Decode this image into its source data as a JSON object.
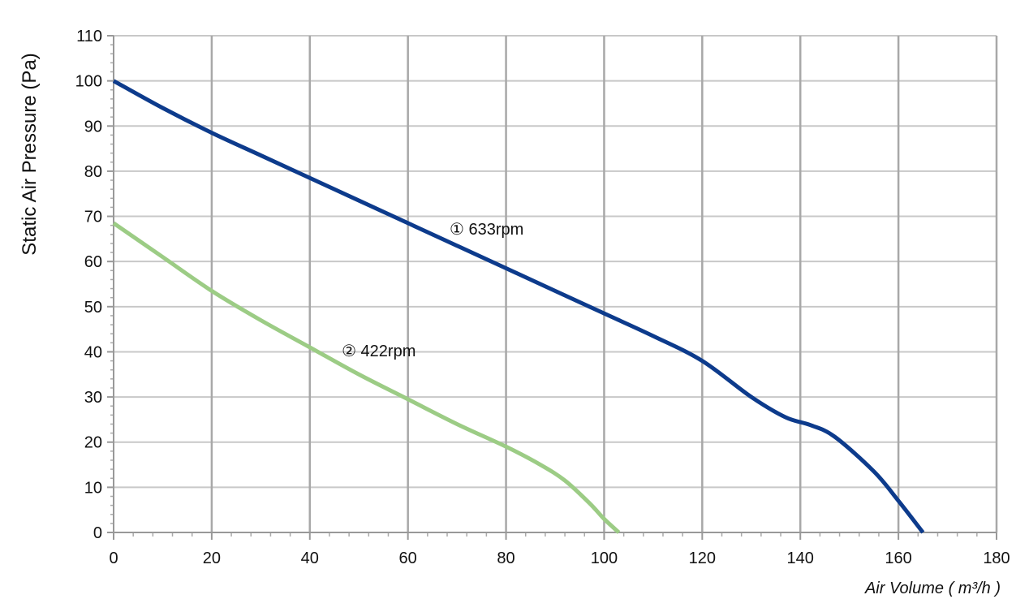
{
  "chart_data": {
    "type": "line",
    "xlabel": "Air Volume ( m³/h )",
    "ylabel": "Static Air Pressure  (Pa)",
    "xlim": [
      0,
      180
    ],
    "ylim": [
      0,
      110
    ],
    "x_ticks": [
      0,
      20,
      40,
      60,
      80,
      100,
      120,
      140,
      160,
      180
    ],
    "y_ticks": [
      0,
      10,
      20,
      30,
      40,
      50,
      60,
      70,
      80,
      90,
      100,
      110
    ],
    "grid": true,
    "series": [
      {
        "name": "① 633rpm",
        "color": "#0d3b8c",
        "x": [
          0,
          10,
          20,
          30,
          40,
          50,
          60,
          70,
          80,
          90,
          100,
          110,
          120,
          130,
          137,
          142,
          147,
          155,
          160,
          165
        ],
        "y": [
          100,
          94,
          88.5,
          83.5,
          78.5,
          73.5,
          68.5,
          63.5,
          58.5,
          53.5,
          48.5,
          43.5,
          38,
          30,
          25.5,
          23.8,
          21.2,
          13.5,
          7,
          0
        ]
      },
      {
        "name": "② 422rpm",
        "color": "#9ccc85",
        "x": [
          0,
          10,
          20,
          30,
          40,
          50,
          60,
          70,
          80,
          87,
          92,
          97,
          100,
          103
        ],
        "y": [
          68.5,
          61,
          53.5,
          47,
          41,
          35,
          29.5,
          24,
          19,
          15,
          11.5,
          6.5,
          3,
          0
        ]
      }
    ],
    "annotations": [
      {
        "text": "① 633rpm",
        "x": 68.5,
        "y": 66
      },
      {
        "text": "② 422rpm",
        "x": 46.5,
        "y": 39
      }
    ]
  }
}
